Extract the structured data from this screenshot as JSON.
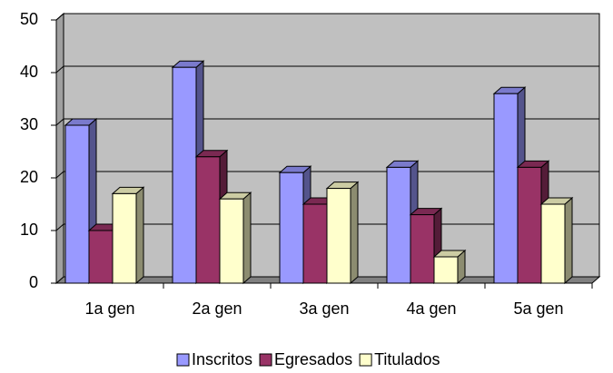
{
  "chart_data": {
    "type": "bar3d",
    "categories": [
      "1a gen",
      "2a gen",
      "3a gen",
      "4a gen",
      "5a gen"
    ],
    "series": [
      {
        "name": "Inscritos",
        "color": "#9999ff",
        "values": [
          30,
          41,
          21,
          22,
          36
        ]
      },
      {
        "name": "Egresados",
        "color": "#993366",
        "values": [
          10,
          24,
          15,
          13,
          22
        ]
      },
      {
        "name": "Titulados",
        "color": "#ffffcc",
        "values": [
          17,
          16,
          18,
          5,
          15
        ]
      }
    ],
    "ylim": [
      0,
      50
    ],
    "yticks": [
      0,
      10,
      20,
      30,
      40,
      50
    ],
    "grid": true,
    "legend": "bottom"
  }
}
